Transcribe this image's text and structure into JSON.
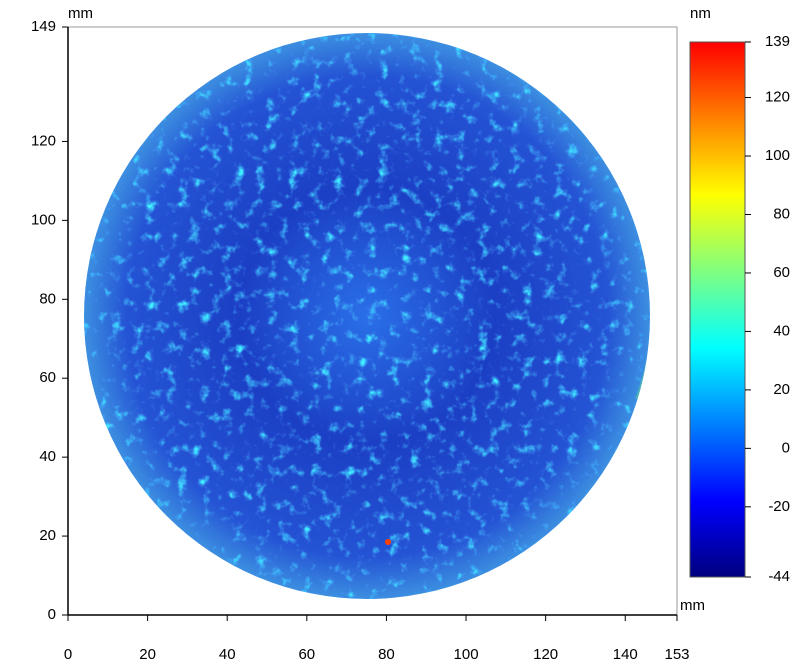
{
  "chart_data": {
    "type": "surface-map",
    "y_unit": "mm",
    "x_unit": "mm",
    "colorbar_unit": "nm",
    "xlim": [
      0,
      153
    ],
    "xticks": [
      0,
      20,
      40,
      60,
      80,
      100,
      120,
      140,
      153
    ],
    "ylim": [
      0,
      149
    ],
    "yticks": [
      0,
      20,
      40,
      60,
      80,
      100,
      120,
      149
    ],
    "clim": [
      -44,
      139
    ],
    "cticks": [
      -44,
      -20,
      0,
      20,
      40,
      60,
      80,
      100,
      120,
      139
    ],
    "colormap": [
      "#00007f",
      "#0000ff",
      "#0080ff",
      "#00ffff",
      "#80ff80",
      "#ffff00",
      "#ff8000",
      "#ff0000"
    ]
  }
}
